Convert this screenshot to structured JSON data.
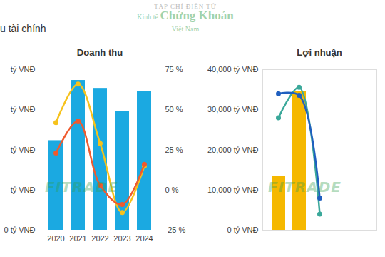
{
  "header": {
    "title": "u tài chính",
    "logo": [
      "TẠP CHÍ ĐIỆN TỬ",
      "Kinh tế",
      "Chứng",
      "Khoán",
      "Việt Nam"
    ]
  },
  "chart_data": [
    {
      "type": "bar",
      "title": "Doanh thu",
      "categories": [
        "2020",
        "2021",
        "2022",
        "2023",
        "2024"
      ],
      "series": [
        {
          "type": "bar",
          "color": "#1ba9e1",
          "values": [
            89300,
            149300,
            141400,
            118600,
            138600
          ]
        },
        {
          "type": "line",
          "axis": "y2",
          "color": "#f6c21c",
          "marker": "circle",
          "values": [
            42,
            66,
            29,
            -14,
            15
          ]
        },
        {
          "type": "line",
          "axis": "y2",
          "color": "#ef5a2e",
          "marker": "circle",
          "values": [
            23,
            43,
            3,
            -9,
            16
          ]
        }
      ],
      "ylim": [
        0,
        160000
      ],
      "yticks": [
        {
          "value": 0,
          "label": "0 tỷ VNĐ"
        },
        {
          "value": 40000,
          "label": "tỷ VNĐ"
        },
        {
          "value": 80000,
          "label": "tỷ VNĐ"
        },
        {
          "value": 120000,
          "label": "tỷ VNĐ"
        },
        {
          "value": 160000,
          "label": "tỷ VNĐ"
        }
      ],
      "y2lim": [
        -25,
        75
      ],
      "y2ticks": [
        {
          "value": -25,
          "label": "-25 %"
        },
        {
          "value": 0,
          "label": "0 %"
        },
        {
          "value": 25,
          "label": "25 %"
        },
        {
          "value": 50,
          "label": "50 %"
        },
        {
          "value": 75,
          "label": "75 %"
        }
      ],
      "annotations": [
        "FITRADE"
      ]
    },
    {
      "type": "bar",
      "title": "Lợi nhuận",
      "categories": [
        null,
        null,
        null,
        null,
        null
      ],
      "series": [
        {
          "type": "bar",
          "color": "#f5b800",
          "values": [
            13500,
            34500,
            null,
            null,
            null
          ]
        },
        {
          "type": "line",
          "axis": "y2",
          "color": "#3aa89a",
          "marker": "circle",
          "values": [
            45,
            64,
            -15,
            null,
            null
          ]
        },
        {
          "type": "line",
          "axis": "y2",
          "color": "#1f5fbf",
          "marker": "circle",
          "values": [
            60,
            59,
            -5,
            null,
            null
          ]
        }
      ],
      "ylim": [
        0,
        40000
      ],
      "yticks": [
        {
          "value": 0,
          "label": "0 tỷ VNĐ"
        },
        {
          "value": 10000,
          "label": "10,000 tỷ VNĐ"
        },
        {
          "value": 20000,
          "label": "20,000 tỷ VNĐ"
        },
        {
          "value": 30000,
          "label": "30,000 tỷ VNĐ"
        },
        {
          "value": 40000,
          "label": "40,000 tỷ VNĐ"
        }
      ],
      "y2lim": [
        -25,
        75
      ],
      "y2ticks": [],
      "tick_labels": "y",
      "annotations": [
        "FITRADE"
      ]
    }
  ]
}
